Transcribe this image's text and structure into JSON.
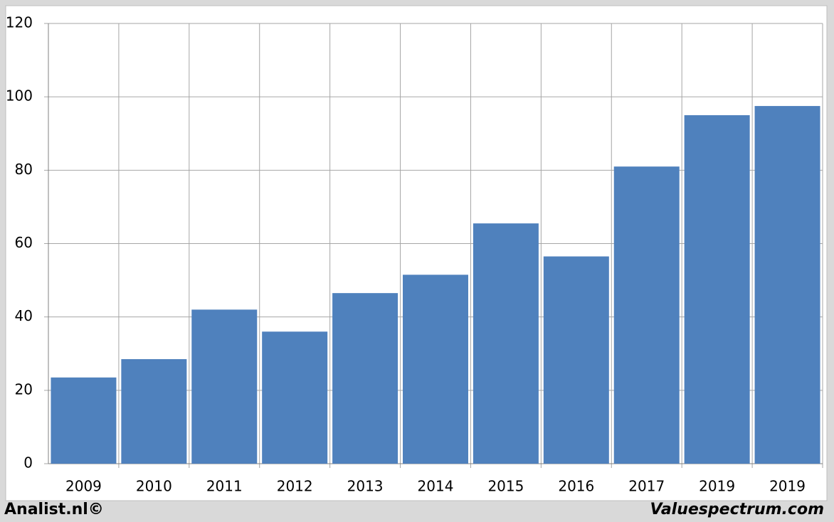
{
  "chart_data": {
    "type": "bar",
    "categories": [
      "2009",
      "2010",
      "2011",
      "2012",
      "2013",
      "2014",
      "2015",
      "2016",
      "2017",
      "2019",
      "2019"
    ],
    "values": [
      23.5,
      28.5,
      42,
      36,
      46.5,
      51.5,
      65.5,
      56.5,
      81,
      95,
      97.5
    ],
    "color": "#4f81bd",
    "ylim": [
      0,
      120
    ],
    "yticks": [
      0,
      20,
      40,
      60,
      80,
      100,
      120
    ],
    "grid": true
  },
  "footer": {
    "left": "Analist.nl©",
    "right": "Valuespectrum.com"
  }
}
